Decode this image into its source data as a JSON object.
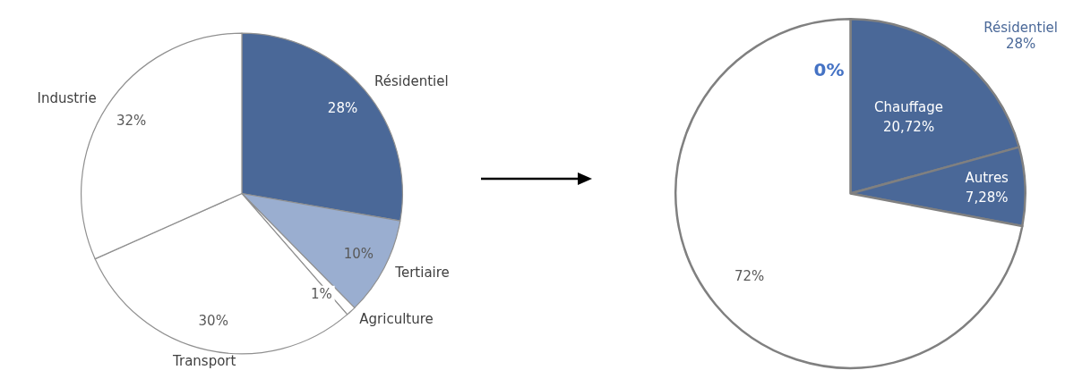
{
  "chart_data": [
    {
      "type": "pie",
      "categories": [
        "Résidentiel",
        "Tertiaire",
        "Agriculture",
        "Transport",
        "Industrie"
      ],
      "values": [
        28,
        10,
        1,
        30,
        32
      ],
      "colors": [
        "#4a6898",
        "#9aaed0",
        "#ffffff",
        "#ffffff",
        "#ffffff"
      ],
      "value_labels": [
        "28%",
        "10%",
        "1%",
        "30%",
        "32%"
      ]
    },
    {
      "type": "pie",
      "categories": [
        "Chauffage",
        "Autres",
        null,
        null
      ],
      "values": [
        20.72,
        7.28,
        72,
        0
      ],
      "colors": [
        "#4a6898",
        "#4a6898",
        "#ffffff",
        "#4472c4"
      ],
      "value_labels": [
        "20,72%",
        "7,28%",
        "72%",
        "0%"
      ],
      "annotations": [
        "Résidentiel\n28%"
      ]
    }
  ]
}
